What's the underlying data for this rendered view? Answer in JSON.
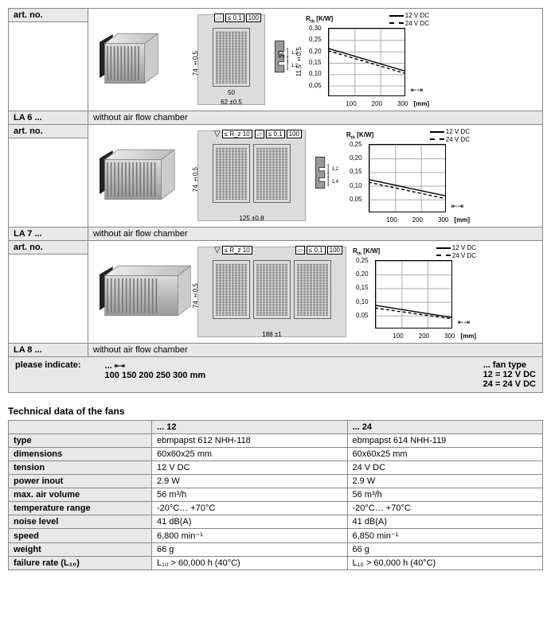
{
  "labels": {
    "artno": "art. no.",
    "caption": "without air flow chamber",
    "please_indicate": "please indicate:",
    "fan_type": "... fan type",
    "tech_title": "Technical data of the fans"
  },
  "products": [
    {
      "model": "LA 6 ...",
      "drawing": {
        "rz": "≤ R_z 10",
        "flatness": [
          "▱",
          "≤ 0,1",
          "100"
        ],
        "height": "74 ±0,5",
        "inner_h": "50",
        "side_h": "11,5 ±0,5",
        "width_inner": "50",
        "width_outer": "62 ±0,5",
        "profile_dims": [
          "1,2",
          "1,2"
        ],
        "fin_groups": 1,
        "fins_per_group": 10
      },
      "chart": {
        "ylabel": "R_th [K/W]",
        "legend_solid": "12 V DC",
        "legend_dash": "24 V DC",
        "yticks": [
          "0,30",
          "0,25",
          "0,20",
          "0,15",
          "0,10",
          "0,05"
        ],
        "ymax": 0.3,
        "xticks": [
          "100",
          "200",
          "300"
        ],
        "xunit": "[mm]",
        "line_solid": [
          [
            0,
            0.21
          ],
          [
            1,
            0.11
          ]
        ],
        "line_dash": [
          [
            0,
            0.2
          ],
          [
            1,
            0.1
          ]
        ]
      }
    },
    {
      "model": "LA 7 ...",
      "drawing": {
        "rz": "≤ R_z 10",
        "flatness": [
          "▱",
          "≤ 0,1",
          "100"
        ],
        "height": "74 ±0,5",
        "width_outer": "125 ±0,8",
        "profile_dims": [
          "1,2",
          "1,4"
        ],
        "fin_groups": 2,
        "fins_per_group": 10
      },
      "chart": {
        "ylabel": "R_th [K/W]",
        "legend_solid": "12 V DC",
        "legend_dash": "24 V DC",
        "yticks": [
          "0,25",
          "0,20",
          "0,15",
          "0,10",
          "0,05"
        ],
        "ymax": 0.25,
        "xticks": [
          "100",
          "200",
          "300"
        ],
        "xunit": "[mm]",
        "line_solid": [
          [
            0,
            0.12
          ],
          [
            1,
            0.06
          ]
        ],
        "line_dash": [
          [
            0,
            0.11
          ],
          [
            1,
            0.05
          ]
        ]
      }
    },
    {
      "model": "LA 8 ...",
      "drawing": {
        "rz": "≤ R_z 10",
        "flatness": [
          "▱",
          "≤ 0,1",
          "100"
        ],
        "height": "74 ±0,5",
        "width_outer": "188 ±1",
        "fin_groups": 3,
        "fins_per_group": 10
      },
      "chart": {
        "ylabel": "R_th [K/W]",
        "legend_solid": "12 V DC",
        "legend_dash": "24 V DC",
        "yticks": [
          "0,25",
          "0,20",
          "0,15",
          "0,10",
          "0,05"
        ],
        "ymax": 0.25,
        "xticks": [
          "100",
          "200",
          "300"
        ],
        "xunit": "[mm]",
        "line_solid": [
          [
            0,
            0.085
          ],
          [
            1,
            0.04
          ]
        ],
        "line_dash": [
          [
            0,
            0.075
          ],
          [
            1,
            0.035
          ]
        ]
      }
    }
  ],
  "indicate": {
    "lengths": [
      "100",
      "150",
      "200",
      "250",
      "300 mm"
    ],
    "fan12": "12 =  12 V DC",
    "fan24": "24 =  24 V DC"
  },
  "spec_table": {
    "col_headers": [
      "",
      "... 12",
      "... 24"
    ],
    "rows": [
      [
        "type",
        "ebmpapst 612 NHH-118",
        "ebmpapst 614 NHH-119"
      ],
      [
        "dimensions",
        "60x60x25 mm",
        "60x60x25 mm"
      ],
      [
        "tension",
        "12 V DC",
        "24 V DC"
      ],
      [
        "power inout",
        "2.9 W",
        "2.9 W"
      ],
      [
        "max. air volume",
        "56 m³/h",
        "56 m³/h"
      ],
      [
        "temperature range",
        "-20°C… +70°C",
        "-20°C… +70°C"
      ],
      [
        "noise level",
        "41 dB(A)",
        "41 dB(A)"
      ],
      [
        "speed",
        "6,800 min⁻¹",
        "6,850 min⁻¹"
      ],
      [
        "weight",
        "66 g",
        "66 g"
      ],
      [
        "failure rate (L₁₀)",
        "L₁₀ > 60,000 h (40°C)",
        "L₁₀ > 60,000 h (40°C)"
      ]
    ]
  },
  "style": {
    "grid_color": "#aaaaaa",
    "bg_gray": "#e8e8e8",
    "draw_bg": "#dcdcdc",
    "line_color": "#000000"
  }
}
